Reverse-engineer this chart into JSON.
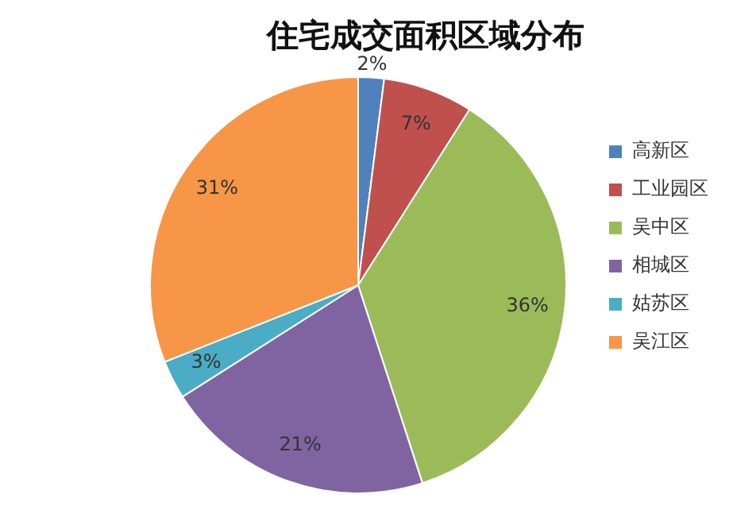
{
  "chart_data": {
    "type": "pie",
    "title": "住宅成交面积区域分布",
    "categories": [
      "高新区",
      "工业园区",
      "吴中区",
      "相城区",
      "姑苏区",
      "吴江区"
    ],
    "values": [
      2,
      7,
      36,
      21,
      3,
      31
    ],
    "value_labels": [
      "2%",
      "7%",
      "36%",
      "21%",
      "3%",
      "31%"
    ],
    "colors": [
      "#4f81bd",
      "#c0504d",
      "#9bbb59",
      "#8064a2",
      "#4bacc6",
      "#f79646"
    ],
    "legend": "right"
  }
}
